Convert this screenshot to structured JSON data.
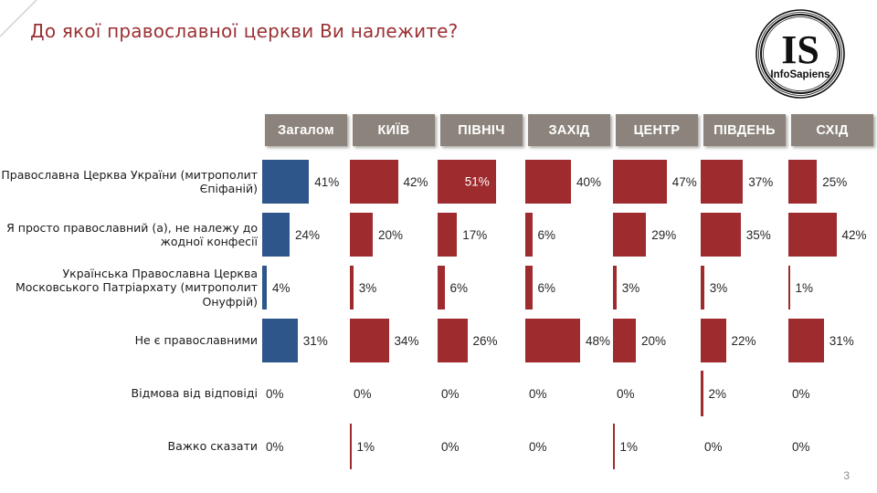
{
  "slide": {
    "title": "До якої православної церкви Ви належите?",
    "page_number": "3",
    "logo": {
      "monogram": "IS",
      "name": "InfoSapiens"
    }
  },
  "colors": {
    "title_text": "#9b3134",
    "general_bar": "#2e568a",
    "region_bar": "#9e2b2e",
    "header_bg": "#8c847c",
    "value_text": "#262626",
    "inside_value_text": "#ffffff"
  },
  "chart_data": {
    "type": "bar",
    "orientation": "horizontal",
    "layout": "small-multiples-by-region",
    "title": "До якої православної церкви Ви належите?",
    "value_suffix": "%",
    "xlim": [
      0,
      60
    ],
    "grid": false,
    "legend_position": "none",
    "columns": [
      "Загалом",
      "КИЇВ",
      "ПІВНІЧ",
      "ЗАХІД",
      "ЦЕНТР",
      "ПІВДЕНЬ",
      "СХІД"
    ],
    "categories": [
      "Православна Церква України (митрополит Єпіфаній)",
      "Я просто православний (а), не належу до жодної конфесії",
      "Українська Православна Церква Московського Патріархату (митрополит Онуфрій)",
      "Не є православними",
      "Відмова від відповіді",
      "Важко сказати"
    ],
    "series": [
      {
        "name": "Загалом",
        "values": [
          41,
          24,
          4,
          31,
          0,
          0
        ]
      },
      {
        "name": "КИЇВ",
        "values": [
          42,
          20,
          3,
          34,
          0,
          1
        ]
      },
      {
        "name": "ПІВНІЧ",
        "values": [
          51,
          17,
          6,
          26,
          0,
          0
        ]
      },
      {
        "name": "ЗАХІД",
        "values": [
          40,
          6,
          6,
          48,
          0,
          0
        ]
      },
      {
        "name": "ЦЕНТР",
        "values": [
          47,
          29,
          3,
          20,
          0,
          1
        ]
      },
      {
        "name": "ПІВДЕНЬ",
        "values": [
          37,
          35,
          3,
          22,
          2,
          0
        ]
      },
      {
        "name": "СХІД",
        "values": [
          25,
          42,
          1,
          31,
          0,
          0
        ]
      }
    ],
    "inside_labels": [
      {
        "row": 0,
        "col": 2
      }
    ]
  }
}
